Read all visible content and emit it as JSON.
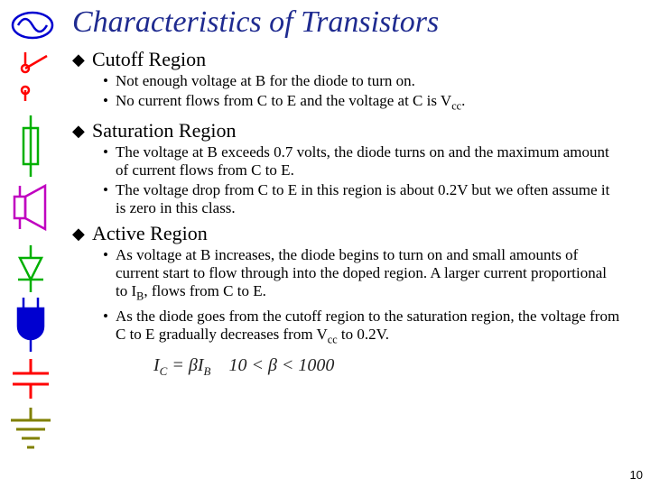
{
  "title": "Characteristics of Transistors",
  "sections": [
    {
      "heading": "Cutoff Region",
      "items": [
        "Not enough voltage at B for the diode to turn on.",
        "No current flows from C to E and the voltage at C is V<sub>cc</sub>."
      ]
    },
    {
      "heading": "Saturation Region",
      "items": [
        "The voltage at B exceeds 0.7 volts, the diode turns on and the maximum amount of current flows from C to E.",
        "The voltage drop from C to E in this region is about 0.2V but we often assume it is zero in this class."
      ]
    },
    {
      "heading": "Active Region",
      "items": [
        "As voltage at B increases, the diode begins to turn on and small amounts of current start to flow through into the doped region.  A larger current proportional to I<sub>B</sub>, flows from C to E.",
        "As the diode goes from the cutoff region to the saturation region, the voltage from C to E gradually decreases from V<sub>cc</sub> to 0.2V."
      ]
    }
  ],
  "formula_html": "I<span class='sub'>C</span> = <span class='beta'>&beta;</span>I<span class='sub'>B</span>&nbsp;&nbsp;&nbsp;&nbsp;10 &lt; <span class='beta'>&beta;</span> &lt; 1000",
  "page_number": "10",
  "icon_colors": {
    "sine": "#0000d0",
    "switch": "#ff0000",
    "fuse": "#00b000",
    "speaker": "#c000c0",
    "diode": "#00b000",
    "bell": "#0000d0",
    "capacitor": "#ff0000",
    "ground": "#808000"
  }
}
